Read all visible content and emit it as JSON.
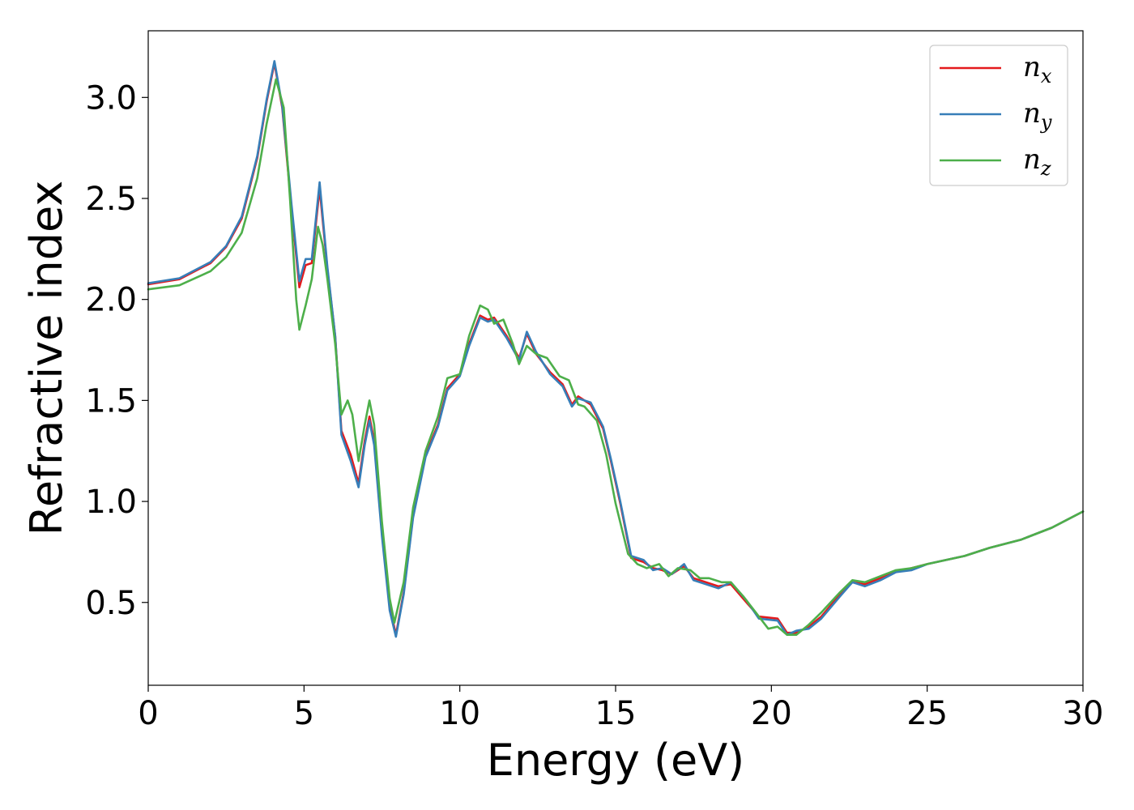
{
  "chart_data": {
    "type": "line",
    "title": "",
    "xlabel": "Energy (eV)",
    "ylabel": "Refractive index",
    "xlim": [
      0,
      30
    ],
    "ylim": [
      0.09,
      3.33
    ],
    "xticks": [
      0,
      5,
      10,
      15,
      20,
      25,
      30
    ],
    "xtick_labels": [
      "0",
      "5",
      "10",
      "15",
      "20",
      "25",
      "30"
    ],
    "yticks": [
      0.5,
      1.0,
      1.5,
      2.0,
      2.5,
      3.0
    ],
    "ytick_labels": [
      "0.5",
      "1.0",
      "1.5",
      "2.0",
      "2.5",
      "3.0"
    ],
    "grid": false,
    "legend_position": "top-right",
    "series": [
      {
        "name": "n",
        "sub": "x",
        "color": "#e41a1c",
        "points": [
          [
            0,
            2.075
          ],
          [
            1,
            2.1
          ],
          [
            2,
            2.18
          ],
          [
            2.5,
            2.26
          ],
          [
            3,
            2.4
          ],
          [
            3.5,
            2.7
          ],
          [
            3.8,
            2.98
          ],
          [
            4.05,
            3.17
          ],
          [
            4.3,
            2.95
          ],
          [
            4.6,
            2.45
          ],
          [
            4.85,
            2.06
          ],
          [
            5.05,
            2.17
          ],
          [
            5.25,
            2.18
          ],
          [
            5.5,
            2.55
          ],
          [
            5.75,
            2.15
          ],
          [
            6.0,
            1.82
          ],
          [
            6.2,
            1.35
          ],
          [
            6.5,
            1.23
          ],
          [
            6.75,
            1.09
          ],
          [
            6.95,
            1.3
          ],
          [
            7.1,
            1.42
          ],
          [
            7.25,
            1.3
          ],
          [
            7.5,
            0.85
          ],
          [
            7.75,
            0.48
          ],
          [
            7.95,
            0.34
          ],
          [
            8.2,
            0.55
          ],
          [
            8.5,
            0.93
          ],
          [
            8.9,
            1.23
          ],
          [
            9.3,
            1.38
          ],
          [
            9.6,
            1.56
          ],
          [
            10.0,
            1.63
          ],
          [
            10.3,
            1.78
          ],
          [
            10.65,
            1.92
          ],
          [
            10.9,
            1.9
          ],
          [
            11.1,
            1.91
          ],
          [
            11.5,
            1.82
          ],
          [
            11.9,
            1.71
          ],
          [
            12.15,
            1.83
          ],
          [
            12.45,
            1.73
          ],
          [
            12.9,
            1.64
          ],
          [
            13.3,
            1.58
          ],
          [
            13.6,
            1.48
          ],
          [
            13.8,
            1.52
          ],
          [
            14.2,
            1.48
          ],
          [
            14.6,
            1.36
          ],
          [
            14.85,
            1.2
          ],
          [
            15.15,
            0.99
          ],
          [
            15.5,
            0.72
          ],
          [
            15.9,
            0.7
          ],
          [
            16.2,
            0.67
          ],
          [
            16.5,
            0.66
          ],
          [
            16.8,
            0.64
          ],
          [
            17.2,
            0.68
          ],
          [
            17.5,
            0.62
          ],
          [
            17.9,
            0.6
          ],
          [
            18.3,
            0.58
          ],
          [
            18.7,
            0.59
          ],
          [
            19.2,
            0.5
          ],
          [
            19.6,
            0.43
          ],
          [
            20.2,
            0.42
          ],
          [
            20.5,
            0.35
          ],
          [
            20.8,
            0.35
          ],
          [
            21.2,
            0.38
          ],
          [
            21.6,
            0.43
          ],
          [
            22.2,
            0.54
          ],
          [
            22.6,
            0.6
          ],
          [
            23.0,
            0.59
          ],
          [
            23.5,
            0.62
          ],
          [
            24.0,
            0.65
          ],
          [
            24.5,
            0.67
          ],
          [
            25.0,
            0.69
          ],
          [
            25.6,
            0.71
          ],
          [
            26.2,
            0.73
          ],
          [
            27.0,
            0.77
          ],
          [
            28.0,
            0.81
          ],
          [
            29.0,
            0.87
          ],
          [
            30.0,
            0.95
          ]
        ]
      },
      {
        "name": "n",
        "sub": "y",
        "color": "#377eb8",
        "points": [
          [
            0,
            2.08
          ],
          [
            1,
            2.105
          ],
          [
            2,
            2.185
          ],
          [
            2.5,
            2.265
          ],
          [
            3,
            2.41
          ],
          [
            3.5,
            2.71
          ],
          [
            3.8,
            2.99
          ],
          [
            4.05,
            3.18
          ],
          [
            4.3,
            2.96
          ],
          [
            4.6,
            2.47
          ],
          [
            4.85,
            2.09
          ],
          [
            5.05,
            2.2
          ],
          [
            5.25,
            2.2
          ],
          [
            5.5,
            2.58
          ],
          [
            5.75,
            2.16
          ],
          [
            6.0,
            1.82
          ],
          [
            6.2,
            1.33
          ],
          [
            6.5,
            1.2
          ],
          [
            6.75,
            1.07
          ],
          [
            6.95,
            1.28
          ],
          [
            7.1,
            1.4
          ],
          [
            7.25,
            1.28
          ],
          [
            7.5,
            0.83
          ],
          [
            7.75,
            0.46
          ],
          [
            7.95,
            0.33
          ],
          [
            8.2,
            0.54
          ],
          [
            8.5,
            0.92
          ],
          [
            8.9,
            1.22
          ],
          [
            9.3,
            1.37
          ],
          [
            9.6,
            1.55
          ],
          [
            10.0,
            1.62
          ],
          [
            10.3,
            1.77
          ],
          [
            10.65,
            1.91
          ],
          [
            10.9,
            1.89
          ],
          [
            11.1,
            1.9
          ],
          [
            11.5,
            1.81
          ],
          [
            11.9,
            1.7
          ],
          [
            12.15,
            1.84
          ],
          [
            12.45,
            1.74
          ],
          [
            12.9,
            1.63
          ],
          [
            13.3,
            1.57
          ],
          [
            13.6,
            1.47
          ],
          [
            13.8,
            1.51
          ],
          [
            14.2,
            1.49
          ],
          [
            14.6,
            1.37
          ],
          [
            14.85,
            1.21
          ],
          [
            15.15,
            1.0
          ],
          [
            15.5,
            0.73
          ],
          [
            15.9,
            0.71
          ],
          [
            16.2,
            0.66
          ],
          [
            16.5,
            0.67
          ],
          [
            16.8,
            0.64
          ],
          [
            17.2,
            0.69
          ],
          [
            17.5,
            0.61
          ],
          [
            17.9,
            0.59
          ],
          [
            18.3,
            0.57
          ],
          [
            18.7,
            0.6
          ],
          [
            19.2,
            0.51
          ],
          [
            19.6,
            0.42
          ],
          [
            20.2,
            0.41
          ],
          [
            20.5,
            0.34
          ],
          [
            20.8,
            0.36
          ],
          [
            21.2,
            0.37
          ],
          [
            21.6,
            0.42
          ],
          [
            22.2,
            0.53
          ],
          [
            22.6,
            0.6
          ],
          [
            23.0,
            0.58
          ],
          [
            23.5,
            0.61
          ],
          [
            24.0,
            0.65
          ],
          [
            24.5,
            0.66
          ],
          [
            25.0,
            0.69
          ],
          [
            25.6,
            0.71
          ],
          [
            26.2,
            0.73
          ],
          [
            27.0,
            0.77
          ],
          [
            28.0,
            0.81
          ],
          [
            29.0,
            0.87
          ],
          [
            30.0,
            0.95
          ]
        ]
      },
      {
        "name": "n",
        "sub": "z",
        "color": "#4daf4a",
        "points": [
          [
            0,
            2.05
          ],
          [
            1,
            2.07
          ],
          [
            2,
            2.14
          ],
          [
            2.5,
            2.21
          ],
          [
            3,
            2.33
          ],
          [
            3.5,
            2.6
          ],
          [
            3.8,
            2.87
          ],
          [
            4.1,
            3.09
          ],
          [
            4.35,
            2.95
          ],
          [
            4.55,
            2.5
          ],
          [
            4.75,
            2.0
          ],
          [
            4.85,
            1.85
          ],
          [
            5.05,
            1.97
          ],
          [
            5.25,
            2.1
          ],
          [
            5.45,
            2.36
          ],
          [
            5.6,
            2.27
          ],
          [
            5.75,
            2.1
          ],
          [
            6.0,
            1.78
          ],
          [
            6.2,
            1.43
          ],
          [
            6.4,
            1.5
          ],
          [
            6.55,
            1.43
          ],
          [
            6.75,
            1.2
          ],
          [
            6.95,
            1.38
          ],
          [
            7.1,
            1.5
          ],
          [
            7.25,
            1.38
          ],
          [
            7.5,
            0.9
          ],
          [
            7.75,
            0.52
          ],
          [
            7.9,
            0.4
          ],
          [
            8.2,
            0.6
          ],
          [
            8.5,
            0.97
          ],
          [
            8.9,
            1.25
          ],
          [
            9.3,
            1.42
          ],
          [
            9.6,
            1.61
          ],
          [
            10.0,
            1.63
          ],
          [
            10.3,
            1.82
          ],
          [
            10.65,
            1.97
          ],
          [
            10.9,
            1.95
          ],
          [
            11.1,
            1.88
          ],
          [
            11.4,
            1.9
          ],
          [
            11.7,
            1.78
          ],
          [
            11.9,
            1.68
          ],
          [
            12.15,
            1.77
          ],
          [
            12.45,
            1.73
          ],
          [
            12.8,
            1.71
          ],
          [
            13.2,
            1.62
          ],
          [
            13.5,
            1.6
          ],
          [
            13.8,
            1.48
          ],
          [
            14.0,
            1.47
          ],
          [
            14.4,
            1.4
          ],
          [
            14.7,
            1.23
          ],
          [
            15.0,
            0.99
          ],
          [
            15.4,
            0.74
          ],
          [
            15.7,
            0.69
          ],
          [
            16.0,
            0.67
          ],
          [
            16.4,
            0.69
          ],
          [
            16.7,
            0.63
          ],
          [
            17.0,
            0.67
          ],
          [
            17.4,
            0.66
          ],
          [
            17.7,
            0.62
          ],
          [
            18.0,
            0.62
          ],
          [
            18.4,
            0.6
          ],
          [
            18.7,
            0.6
          ],
          [
            19.1,
            0.53
          ],
          [
            19.5,
            0.45
          ],
          [
            19.9,
            0.37
          ],
          [
            20.2,
            0.38
          ],
          [
            20.5,
            0.34
          ],
          [
            20.8,
            0.34
          ],
          [
            21.2,
            0.39
          ],
          [
            21.6,
            0.45
          ],
          [
            22.2,
            0.55
          ],
          [
            22.6,
            0.61
          ],
          [
            23.0,
            0.6
          ],
          [
            23.5,
            0.63
          ],
          [
            24.0,
            0.66
          ],
          [
            24.5,
            0.67
          ],
          [
            25.0,
            0.69
          ],
          [
            25.6,
            0.71
          ],
          [
            26.2,
            0.73
          ],
          [
            27.0,
            0.77
          ],
          [
            28.0,
            0.81
          ],
          [
            29.0,
            0.87
          ],
          [
            30.0,
            0.95
          ]
        ]
      }
    ]
  }
}
